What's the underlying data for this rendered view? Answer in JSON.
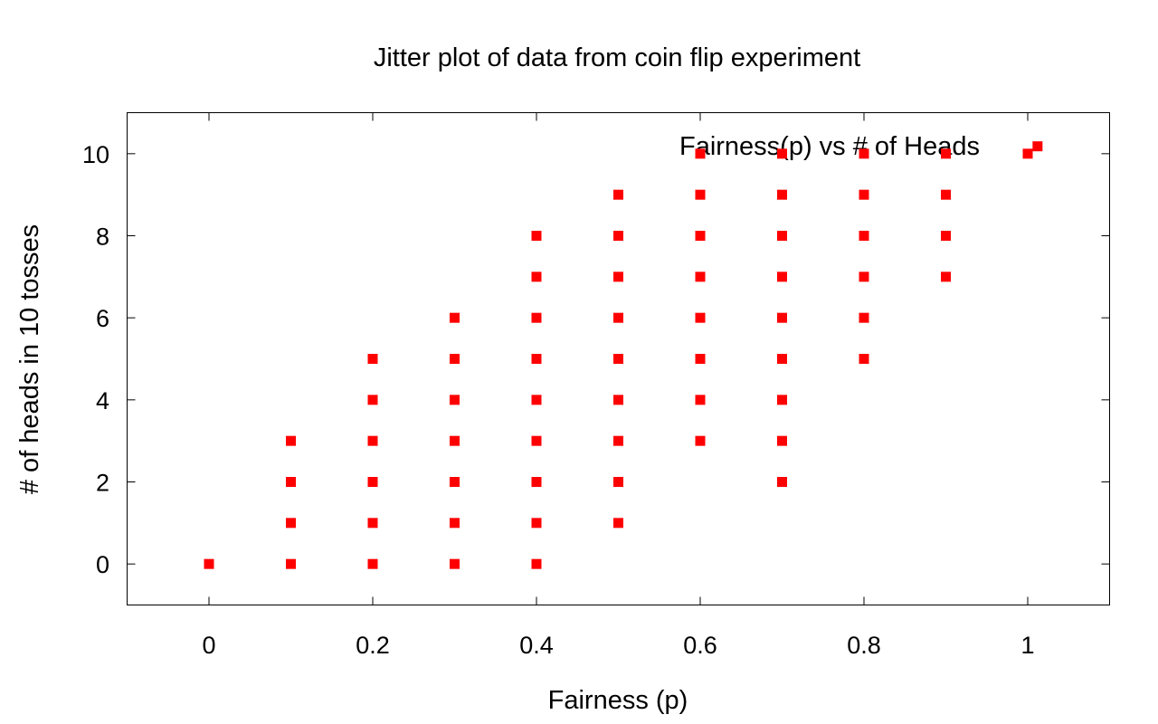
{
  "chart_data": {
    "type": "scatter",
    "title": "Jitter plot of data from coin flip experiment",
    "xlabel": "Fairness (p)",
    "ylabel": "# of heads in 10 tosses",
    "xlim": [
      -0.1,
      1.1
    ],
    "ylim": [
      -1,
      11
    ],
    "xticks": [
      0,
      0.2,
      0.4,
      0.6,
      0.8,
      1
    ],
    "xtick_labels": [
      "0",
      "0.2",
      "0.4",
      "0.6",
      "0.8",
      "1"
    ],
    "yticks": [
      0,
      2,
      4,
      6,
      8,
      10
    ],
    "ytick_labels": [
      "0",
      "2",
      "4",
      "6",
      "8",
      "10"
    ],
    "grid": false,
    "legend": {
      "position": "top-right",
      "entries": [
        "Fairness(p) vs # of Heads"
      ]
    },
    "marker_color": "#ff0000",
    "series": [
      {
        "name": "Fairness(p) vs # of Heads",
        "points": [
          [
            0,
            0
          ],
          [
            0.1,
            0
          ],
          [
            0.1,
            1
          ],
          [
            0.1,
            2
          ],
          [
            0.1,
            3
          ],
          [
            0.2,
            0
          ],
          [
            0.2,
            1
          ],
          [
            0.2,
            2
          ],
          [
            0.2,
            3
          ],
          [
            0.2,
            4
          ],
          [
            0.2,
            5
          ],
          [
            0.3,
            0
          ],
          [
            0.3,
            1
          ],
          [
            0.3,
            2
          ],
          [
            0.3,
            3
          ],
          [
            0.3,
            4
          ],
          [
            0.3,
            5
          ],
          [
            0.3,
            6
          ],
          [
            0.4,
            0
          ],
          [
            0.4,
            1
          ],
          [
            0.4,
            2
          ],
          [
            0.4,
            3
          ],
          [
            0.4,
            4
          ],
          [
            0.4,
            5
          ],
          [
            0.4,
            6
          ],
          [
            0.4,
            7
          ],
          [
            0.4,
            8
          ],
          [
            0.5,
            1
          ],
          [
            0.5,
            2
          ],
          [
            0.5,
            3
          ],
          [
            0.5,
            4
          ],
          [
            0.5,
            5
          ],
          [
            0.5,
            6
          ],
          [
            0.5,
            7
          ],
          [
            0.5,
            8
          ],
          [
            0.5,
            9
          ],
          [
            0.6,
            3
          ],
          [
            0.6,
            4
          ],
          [
            0.6,
            5
          ],
          [
            0.6,
            6
          ],
          [
            0.6,
            7
          ],
          [
            0.6,
            8
          ],
          [
            0.6,
            9
          ],
          [
            0.6,
            10
          ],
          [
            0.7,
            2
          ],
          [
            0.7,
            3
          ],
          [
            0.7,
            4
          ],
          [
            0.7,
            5
          ],
          [
            0.7,
            6
          ],
          [
            0.7,
            7
          ],
          [
            0.7,
            8
          ],
          [
            0.7,
            9
          ],
          [
            0.7,
            10
          ],
          [
            0.8,
            5
          ],
          [
            0.8,
            6
          ],
          [
            0.8,
            7
          ],
          [
            0.8,
            8
          ],
          [
            0.8,
            9
          ],
          [
            0.8,
            10
          ],
          [
            0.9,
            7
          ],
          [
            0.9,
            8
          ],
          [
            0.9,
            9
          ],
          [
            0.9,
            10
          ],
          [
            1.0,
            10
          ],
          [
            1.012,
            10.18
          ]
        ]
      }
    ]
  }
}
